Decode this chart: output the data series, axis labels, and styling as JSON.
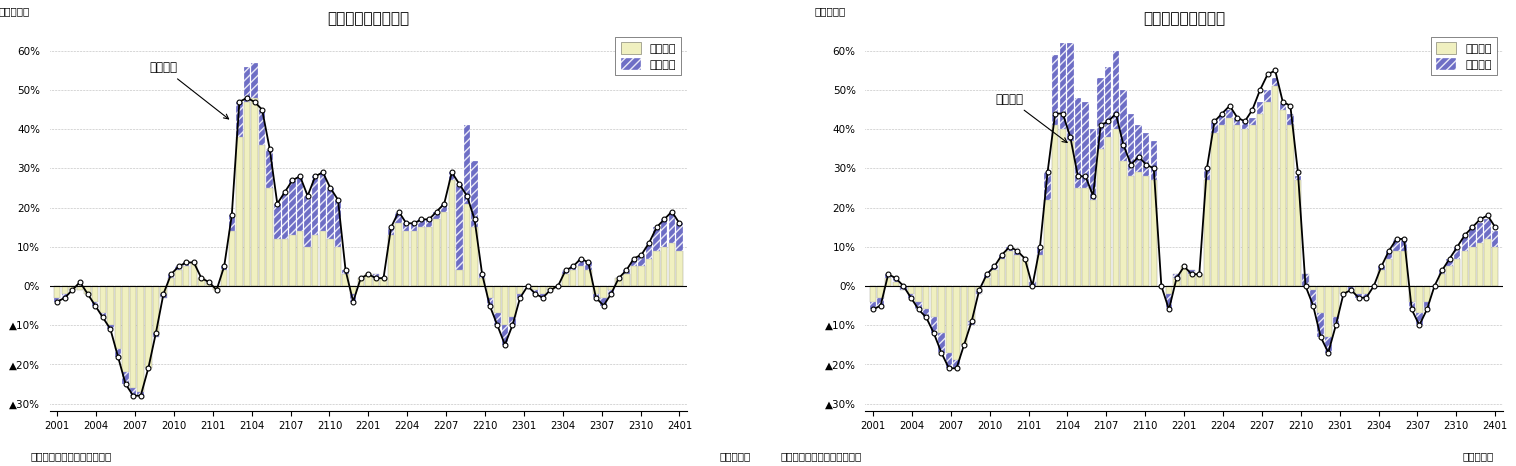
{
  "title1": "輸出金額の要因分解",
  "title2": "輸入金額の要因分解",
  "ylabel_top": "（前年比）",
  "ylabel_bottom1": "（資料）財務省「貿易統計」",
  "ylabel_bottom2": "（年・月）",
  "xtick_labels": [
    "2001",
    "2004",
    "2007",
    "2010",
    "2101",
    "2104",
    "2107",
    "2110",
    "2201",
    "2204",
    "2207",
    "2210",
    "2301",
    "2304",
    "2307",
    "2310",
    "2401"
  ],
  "ytick_labels": [
    "60%",
    "50%",
    "40%",
    "30%",
    "20%",
    "10%",
    "0%",
    "▲10%",
    "▲20%",
    "▲30%"
  ],
  "ytick_values": [
    60,
    50,
    40,
    30,
    20,
    10,
    0,
    -10,
    -20,
    -30
  ],
  "ylim": [
    -32,
    65
  ],
  "legend_entries": [
    "数量要因",
    "価格要因"
  ],
  "color_quantity": "#f0f0c0",
  "color_price_face": "#5555bb",
  "color_price_hatch": "#5555bb",
  "color_line": "#000000",
  "annotation1": "輸出金額",
  "annotation2": "輸入金額",
  "export_quantity": [
    -3,
    -2,
    -1,
    -1,
    -2,
    -4,
    -7,
    -10,
    -16,
    -22,
    -26,
    -27,
    -21,
    -13,
    -3,
    2,
    4,
    5,
    6,
    2,
    1,
    -1,
    4,
    14,
    38,
    47,
    48,
    36,
    25,
    12,
    12,
    13,
    14,
    10,
    13,
    14,
    12,
    10,
    3,
    -2,
    2,
    3,
    3,
    2,
    13,
    16,
    14,
    14,
    15,
    15,
    17,
    19,
    27,
    4,
    21,
    15,
    2,
    -3,
    -7,
    -10,
    -8,
    -2,
    0,
    -1,
    -2,
    -1,
    0,
    3,
    4,
    5,
    4,
    -2,
    -3,
    -1,
    2,
    3,
    5,
    5,
    7,
    9,
    10,
    11,
    9
  ],
  "export_price": [
    -1,
    -1,
    0,
    0,
    0,
    -1,
    -1,
    -1,
    -2,
    -3,
    -2,
    -1,
    0,
    1,
    1,
    1,
    1,
    1,
    0,
    0,
    0,
    0,
    1,
    4,
    9,
    9,
    9,
    9,
    10,
    9,
    12,
    14,
    14,
    13,
    15,
    15,
    13,
    12,
    1,
    -2,
    0,
    0,
    -1,
    0,
    2,
    3,
    2,
    2,
    2,
    2,
    2,
    2,
    2,
    22,
    20,
    17,
    1,
    -2,
    -3,
    -5,
    -2,
    -1,
    0,
    -1,
    -1,
    0,
    0,
    1,
    1,
    2,
    2,
    -1,
    -2,
    -1,
    0,
    1,
    2,
    3,
    4,
    6,
    7,
    8,
    7
  ],
  "export_line": [
    -4,
    -3,
    -1,
    1,
    -2,
    -5,
    -8,
    -11,
    -18,
    -25,
    -28,
    -28,
    -21,
    -12,
    -2,
    3,
    5,
    6,
    6,
    2,
    1,
    -1,
    5,
    18,
    47,
    48,
    47,
    45,
    35,
    21,
    24,
    27,
    28,
    23,
    28,
    29,
    25,
    22,
    4,
    -4,
    2,
    3,
    2,
    2,
    15,
    19,
    16,
    16,
    17,
    17,
    19,
    21,
    29,
    26,
    23,
    17,
    3,
    -5,
    -10,
    -15,
    -10,
    -3,
    0,
    -2,
    -3,
    -1,
    0,
    4,
    5,
    7,
    6,
    -3,
    -5,
    -2,
    2,
    4,
    7,
    8,
    11,
    15,
    17,
    19,
    16
  ],
  "import_quantity": [
    -4,
    -3,
    2,
    1,
    -1,
    -2,
    -4,
    -6,
    -8,
    -12,
    -17,
    -19,
    -15,
    -10,
    -2,
    2,
    4,
    7,
    9,
    8,
    7,
    1,
    8,
    22,
    41,
    40,
    37,
    25,
    25,
    22,
    35,
    38,
    40,
    32,
    28,
    29,
    28,
    27,
    0,
    -2,
    3,
    5,
    4,
    3,
    27,
    39,
    41,
    43,
    41,
    40,
    41,
    44,
    47,
    51,
    45,
    41,
    27,
    3,
    -1,
    -7,
    -13,
    -8,
    -2,
    0,
    -2,
    -2,
    0,
    4,
    7,
    9,
    9,
    -4,
    -7,
    -4,
    0,
    3,
    5,
    7,
    9,
    10,
    11,
    12,
    10
  ],
  "import_price": [
    -2,
    -2,
    1,
    1,
    1,
    -1,
    -2,
    -2,
    -4,
    -5,
    -4,
    -2,
    0,
    1,
    1,
    1,
    1,
    1,
    1,
    1,
    0,
    -1,
    2,
    7,
    18,
    22,
    25,
    23,
    22,
    18,
    18,
    18,
    20,
    18,
    16,
    12,
    11,
    10,
    0,
    -4,
    -1,
    0,
    -1,
    0,
    3,
    3,
    3,
    2,
    2,
    2,
    2,
    3,
    3,
    2,
    2,
    3,
    1,
    -3,
    -4,
    -6,
    -4,
    -2,
    0,
    -1,
    -1,
    -1,
    0,
    1,
    2,
    3,
    3,
    -2,
    -3,
    -2,
    0,
    1,
    2,
    3,
    4,
    5,
    5,
    5,
    4
  ],
  "import_line": [
    -6,
    -5,
    3,
    2,
    0,
    -3,
    -6,
    -8,
    -12,
    -17,
    -21,
    -21,
    -15,
    -9,
    -1,
    3,
    5,
    8,
    10,
    9,
    7,
    0,
    10,
    29,
    44,
    44,
    38,
    28,
    28,
    23,
    41,
    42,
    44,
    36,
    31,
    33,
    31,
    30,
    0,
    -6,
    2,
    5,
    3,
    3,
    30,
    42,
    44,
    46,
    43,
    42,
    45,
    50,
    54,
    55,
    47,
    46,
    29,
    0,
    -5,
    -13,
    -17,
    -10,
    -2,
    -1,
    -3,
    -3,
    0,
    5,
    9,
    12,
    12,
    -6,
    -10,
    -6,
    0,
    4,
    7,
    10,
    13,
    15,
    17,
    18,
    15
  ],
  "bar_width": 0.85
}
